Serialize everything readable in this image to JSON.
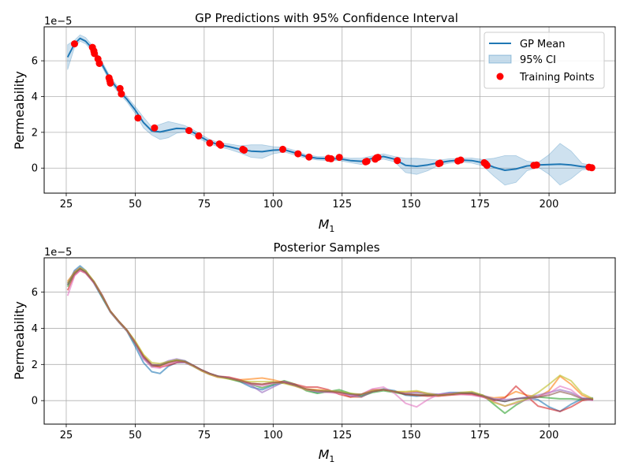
{
  "chart_data": [
    {
      "type": "line",
      "title": "GP Predictions with 95% Confidence Interval",
      "xlabel": "M₁",
      "ylabel": "Permeability",
      "y_offset_label": "1e−5",
      "xlim": [
        17,
        224
      ],
      "ylim": [
        -1.4,
        7.9
      ],
      "xticks": [
        25,
        50,
        75,
        100,
        125,
        150,
        175,
        200,
        225
      ],
      "yticks": [
        0,
        2,
        4,
        6
      ],
      "grid": true,
      "legend_position": "top-right",
      "legend": [
        "GP Mean",
        "95% CI",
        "Training Points"
      ],
      "series": [
        {
          "name": "GP Mean",
          "color": "#1f77b4",
          "x": [
            25.5,
            28,
            30,
            32,
            35,
            38,
            41,
            44,
            47,
            50,
            53,
            56,
            59,
            62,
            65,
            68,
            71,
            74,
            77,
            80,
            84,
            88,
            92,
            96,
            100,
            104,
            108,
            112,
            116,
            120,
            124,
            128,
            132,
            136,
            140,
            144,
            148,
            152,
            156,
            160,
            164,
            168,
            172,
            176,
            180,
            184,
            188,
            192,
            196,
            200,
            204,
            208,
            212,
            216
          ],
          "y": [
            6.2,
            6.95,
            7.25,
            7.1,
            6.6,
            5.8,
            4.95,
            4.35,
            3.85,
            3.25,
            2.55,
            2.08,
            2.02,
            2.12,
            2.22,
            2.2,
            2.0,
            1.72,
            1.48,
            1.32,
            1.2,
            1.05,
            0.95,
            0.92,
            1.0,
            1.03,
            0.85,
            0.65,
            0.55,
            0.53,
            0.52,
            0.42,
            0.38,
            0.55,
            0.65,
            0.5,
            0.15,
            0.1,
            0.18,
            0.3,
            0.4,
            0.45,
            0.42,
            0.3,
            0.05,
            -0.12,
            -0.05,
            0.12,
            0.18,
            0.2,
            0.22,
            0.18,
            0.08,
            0.05
          ]
        },
        {
          "name": "95% CI",
          "color": "#1f77b4",
          "x": [
            25.5,
            28,
            30,
            32,
            35,
            38,
            41,
            44,
            47,
            50,
            53,
            56,
            59,
            62,
            65,
            68,
            71,
            74,
            77,
            80,
            84,
            88,
            92,
            96,
            100,
            104,
            108,
            112,
            116,
            120,
            124,
            128,
            132,
            136,
            140,
            144,
            148,
            152,
            156,
            160,
            164,
            168,
            172,
            176,
            180,
            184,
            188,
            192,
            196,
            200,
            204,
            208,
            212,
            216
          ],
          "lower": [
            5.5,
            6.75,
            7.1,
            6.95,
            6.45,
            5.65,
            4.8,
            4.2,
            3.7,
            3.05,
            2.25,
            1.85,
            1.6,
            1.7,
            1.95,
            2.02,
            1.85,
            1.58,
            1.35,
            1.2,
            1.05,
            0.85,
            0.6,
            0.55,
            0.8,
            0.9,
            0.72,
            0.55,
            0.45,
            0.42,
            0.42,
            0.3,
            0.2,
            0.42,
            0.5,
            0.35,
            -0.25,
            -0.35,
            -0.15,
            0.15,
            0.28,
            0.35,
            0.28,
            0.12,
            -0.45,
            -0.95,
            -0.8,
            -0.15,
            0.05,
            -0.35,
            -0.95,
            -0.6,
            -0.1,
            -0.05
          ],
          "upper": [
            6.9,
            7.15,
            7.45,
            7.3,
            6.75,
            5.95,
            5.1,
            4.5,
            4.0,
            3.45,
            2.85,
            2.3,
            2.45,
            2.6,
            2.5,
            2.38,
            2.15,
            1.86,
            1.61,
            1.44,
            1.35,
            1.25,
            1.3,
            1.3,
            1.2,
            1.16,
            0.98,
            0.75,
            0.65,
            0.64,
            0.62,
            0.55,
            0.56,
            0.68,
            0.8,
            0.65,
            0.55,
            0.55,
            0.5,
            0.45,
            0.52,
            0.55,
            0.56,
            0.48,
            0.55,
            0.7,
            0.7,
            0.39,
            0.31,
            0.75,
            1.38,
            0.96,
            0.26,
            0.15
          ]
        },
        {
          "name": "Training Points",
          "color": "#ff0000",
          "x": [
            28,
            34.5,
            35,
            35.2,
            36.5,
            37,
            40.5,
            40.8,
            41,
            44.5,
            45,
            51,
            57,
            69.5,
            73,
            77,
            80.5,
            81,
            89,
            89.5,
            103.5,
            109,
            113,
            120,
            121,
            124,
            133.5,
            134,
            137,
            137.5,
            138,
            145,
            160,
            160.5,
            167,
            168,
            176.5,
            177,
            177.5,
            194.5,
            195.5,
            214.5,
            215.5
          ],
          "y": [
            6.95,
            6.75,
            6.55,
            6.4,
            6.1,
            5.85,
            5.05,
            4.9,
            4.75,
            4.45,
            4.15,
            2.8,
            2.25,
            2.1,
            1.8,
            1.4,
            1.35,
            1.28,
            1.05,
            1.0,
            1.05,
            0.8,
            0.62,
            0.55,
            0.52,
            0.6,
            0.35,
            0.38,
            0.5,
            0.58,
            0.6,
            0.42,
            0.25,
            0.28,
            0.4,
            0.45,
            0.3,
            0.25,
            0.15,
            0.15,
            0.18,
            0.05,
            0.02
          ]
        }
      ]
    },
    {
      "type": "line",
      "title": "Posterior Samples",
      "xlabel": "M₁",
      "ylabel": "Permeability",
      "y_offset_label": "1e−5",
      "xlim": [
        17,
        224
      ],
      "ylim": [
        -1.3,
        7.9
      ],
      "xticks": [
        25,
        50,
        75,
        100,
        125,
        150,
        175,
        200,
        225
      ],
      "yticks": [
        0,
        2,
        4,
        6
      ],
      "grid": true,
      "x": [
        25.5,
        28,
        30,
        32,
        35,
        38,
        41,
        44,
        47,
        50,
        53,
        56,
        59,
        62,
        65,
        68,
        71,
        74,
        77,
        80,
        84,
        88,
        92,
        96,
        100,
        104,
        108,
        112,
        116,
        120,
        124,
        128,
        132,
        136,
        140,
        144,
        148,
        152,
        156,
        160,
        164,
        168,
        172,
        176,
        180,
        184,
        188,
        192,
        196,
        200,
        204,
        208,
        212,
        216
      ],
      "series": [
        {
          "color": "#1f77b4",
          "values": [
            6.4,
            7.2,
            7.45,
            7.2,
            6.5,
            5.7,
            4.9,
            4.35,
            3.85,
            3.0,
            2.1,
            1.6,
            1.5,
            1.9,
            2.1,
            2.1,
            1.9,
            1.65,
            1.45,
            1.35,
            1.25,
            1.05,
            0.75,
            0.6,
            0.85,
            1.0,
            0.85,
            0.6,
            0.45,
            0.5,
            0.5,
            0.35,
            0.25,
            0.5,
            0.65,
            0.55,
            0.3,
            0.25,
            0.3,
            0.35,
            0.45,
            0.45,
            0.4,
            0.25,
            0.05,
            -0.05,
            0.1,
            0.15,
            0.05,
            -0.35,
            -0.6,
            -0.2,
            0.1,
            0.15
          ]
        },
        {
          "color": "#ff7f0e",
          "values": [
            6.6,
            7.1,
            7.3,
            7.15,
            6.6,
            5.85,
            4.95,
            4.4,
            3.9,
            3.25,
            2.5,
            1.95,
            1.9,
            2.1,
            2.2,
            2.15,
            1.95,
            1.65,
            1.45,
            1.3,
            1.25,
            1.15,
            1.2,
            1.25,
            1.15,
            1.0,
            0.85,
            0.65,
            0.6,
            0.55,
            0.45,
            0.2,
            0.2,
            0.5,
            0.6,
            0.5,
            0.45,
            0.5,
            0.35,
            0.3,
            0.35,
            0.4,
            0.35,
            0.25,
            0.15,
            0.2,
            0.5,
            0.3,
            0.2,
            0.55,
            1.35,
            0.9,
            0.3,
            0.05
          ]
        },
        {
          "color": "#2ca02c",
          "values": [
            6.3,
            7.0,
            7.3,
            7.1,
            6.55,
            5.75,
            4.9,
            4.35,
            3.85,
            3.15,
            2.35,
            1.9,
            1.95,
            2.15,
            2.25,
            2.2,
            1.95,
            1.7,
            1.5,
            1.35,
            1.2,
            1.05,
            0.9,
            0.7,
            0.9,
            1.1,
            0.9,
            0.55,
            0.4,
            0.5,
            0.6,
            0.4,
            0.25,
            0.45,
            0.55,
            0.45,
            0.35,
            0.3,
            0.3,
            0.3,
            0.35,
            0.4,
            0.45,
            0.3,
            -0.2,
            -0.7,
            -0.25,
            0.1,
            0.2,
            0.15,
            0.1,
            0.1,
            0.05,
            0.1
          ]
        },
        {
          "color": "#d62728",
          "values": [
            6.1,
            6.95,
            7.2,
            7.05,
            6.55,
            5.8,
            4.95,
            4.4,
            3.9,
            3.2,
            2.4,
            1.95,
            1.85,
            1.95,
            2.1,
            2.15,
            1.95,
            1.7,
            1.5,
            1.35,
            1.3,
            1.15,
            0.95,
            0.9,
            1.0,
            1.05,
            0.9,
            0.75,
            0.75,
            0.6,
            0.35,
            0.2,
            0.35,
            0.6,
            0.6,
            0.5,
            0.35,
            0.3,
            0.25,
            0.25,
            0.3,
            0.35,
            0.35,
            0.2,
            0.0,
            0.15,
            0.8,
            0.25,
            -0.3,
            -0.45,
            -0.6,
            -0.35,
            0.0,
            0.1
          ]
        },
        {
          "color": "#9467bd",
          "values": [
            6.5,
            7.15,
            7.35,
            7.15,
            6.6,
            5.85,
            4.95,
            4.4,
            3.9,
            3.2,
            2.35,
            1.95,
            2.0,
            2.2,
            2.3,
            2.2,
            1.95,
            1.7,
            1.5,
            1.35,
            1.25,
            1.1,
            0.85,
            0.45,
            0.75,
            1.05,
            0.85,
            0.6,
            0.5,
            0.55,
            0.5,
            0.25,
            0.2,
            0.5,
            0.6,
            0.5,
            0.4,
            0.45,
            0.4,
            0.35,
            0.4,
            0.45,
            0.45,
            0.3,
            0.1,
            0.05,
            0.1,
            0.2,
            0.3,
            0.45,
            0.6,
            0.45,
            0.15,
            0.05
          ]
        },
        {
          "color": "#e377c2",
          "values": [
            5.8,
            6.9,
            7.2,
            7.05,
            6.5,
            5.8,
            4.9,
            4.35,
            3.85,
            3.2,
            2.3,
            1.85,
            1.8,
            2.05,
            2.15,
            2.1,
            1.9,
            1.65,
            1.45,
            1.3,
            1.25,
            1.1,
            0.9,
            0.8,
            0.95,
            1.0,
            0.8,
            0.6,
            0.5,
            0.45,
            0.4,
            0.3,
            0.35,
            0.65,
            0.75,
            0.4,
            -0.15,
            -0.35,
            0.05,
            0.35,
            0.4,
            0.35,
            0.3,
            0.2,
            -0.05,
            -0.3,
            -0.15,
            0.05,
            0.2,
            0.4,
            0.8,
            0.6,
            0.1,
            0.0
          ]
        },
        {
          "color": "#bcbd22",
          "values": [
            6.5,
            7.1,
            7.35,
            7.2,
            6.6,
            5.8,
            4.95,
            4.4,
            3.9,
            3.3,
            2.55,
            2.1,
            2.05,
            2.15,
            2.25,
            2.15,
            1.9,
            1.65,
            1.45,
            1.3,
            1.2,
            1.1,
            1.05,
            1.05,
            1.05,
            0.95,
            0.8,
            0.6,
            0.55,
            0.55,
            0.5,
            0.4,
            0.35,
            0.55,
            0.6,
            0.5,
            0.5,
            0.55,
            0.4,
            0.3,
            0.35,
            0.45,
            0.5,
            0.3,
            -0.1,
            -0.3,
            -0.1,
            0.1,
            0.45,
            0.9,
            1.4,
            1.1,
            0.4,
            0.1
          ]
        },
        {
          "color": "#8c564b",
          "values": [
            6.4,
            7.05,
            7.3,
            7.1,
            6.55,
            5.8,
            4.95,
            4.4,
            3.9,
            3.2,
            2.45,
            2.0,
            1.95,
            2.1,
            2.2,
            2.15,
            1.95,
            1.7,
            1.5,
            1.35,
            1.25,
            1.1,
            0.95,
            0.9,
            1.0,
            1.0,
            0.85,
            0.65,
            0.55,
            0.5,
            0.45,
            0.35,
            0.35,
            0.5,
            0.6,
            0.5,
            0.35,
            0.35,
            0.3,
            0.3,
            0.35,
            0.4,
            0.4,
            0.25,
            0.05,
            -0.05,
            0.1,
            0.15,
            0.2,
            0.3,
            0.5,
            0.35,
            0.1,
            0.05
          ]
        }
      ]
    }
  ]
}
